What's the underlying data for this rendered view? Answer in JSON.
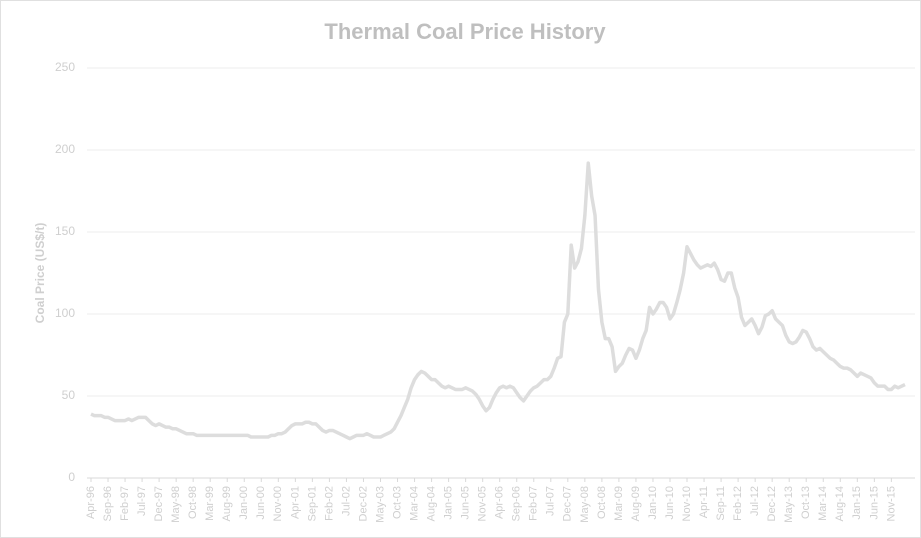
{
  "chart_data": {
    "type": "line",
    "title": "Thermal Coal Price History",
    "y_label": "Coal Price (US$/t)",
    "categories": [
      "Apr-96",
      null,
      null,
      null,
      null,
      "Sep-96",
      null,
      null,
      null,
      null,
      "Feb-97",
      null,
      null,
      null,
      null,
      "Jul-97",
      null,
      null,
      null,
      null,
      "Dec-97",
      null,
      null,
      null,
      null,
      "May-98",
      null,
      null,
      null,
      null,
      "Oct-98",
      null,
      null,
      null,
      null,
      "Mar-99",
      null,
      null,
      null,
      null,
      "Aug-99",
      null,
      null,
      null,
      null,
      "Jan-00",
      null,
      null,
      null,
      null,
      "Jun-00",
      null,
      null,
      null,
      null,
      "Nov-00",
      null,
      null,
      null,
      null,
      "Apr-01",
      null,
      null,
      null,
      null,
      "Sep-01",
      null,
      null,
      null,
      null,
      "Feb-02",
      null,
      null,
      null,
      null,
      "Jul-02",
      null,
      null,
      null,
      null,
      "Dec-02",
      null,
      null,
      null,
      null,
      "May-03",
      null,
      null,
      null,
      null,
      "Oct-03",
      null,
      null,
      null,
      null,
      "Mar-04",
      null,
      null,
      null,
      null,
      "Aug-04",
      null,
      null,
      null,
      null,
      "Jan-05",
      null,
      null,
      null,
      null,
      "Jun-05",
      null,
      null,
      null,
      null,
      "Nov-05",
      null,
      null,
      null,
      null,
      "Apr-06",
      null,
      null,
      null,
      null,
      "Sep-06",
      null,
      null,
      null,
      null,
      "Feb-07",
      null,
      null,
      null,
      null,
      "Jul-07",
      null,
      null,
      null,
      null,
      "Dec-07",
      null,
      null,
      null,
      null,
      "May-08",
      null,
      null,
      null,
      null,
      "Oct-08",
      null,
      null,
      null,
      null,
      "Mar-09",
      null,
      null,
      null,
      null,
      "Aug-09",
      null,
      null,
      null,
      null,
      "Jan-10",
      null,
      null,
      null,
      null,
      "Jun-10",
      null,
      null,
      null,
      null,
      "Nov-10",
      null,
      null,
      null,
      null,
      "Apr-11",
      null,
      null,
      null,
      null,
      "Sep-11",
      null,
      null,
      null,
      null,
      "Feb-12",
      null,
      null,
      null,
      null,
      "Jul-12",
      null,
      null,
      null,
      null,
      "Dec-12",
      null,
      null,
      null,
      null,
      "May-13",
      null,
      null,
      null,
      null,
      "Oct-13",
      null,
      null,
      null,
      null,
      "Mar-14",
      null,
      null,
      null,
      null,
      "Aug-14",
      null,
      null,
      null,
      null,
      "Jan-15",
      null,
      null,
      null,
      null,
      "Jun-15",
      null,
      null,
      null,
      null,
      "Nov-15",
      null,
      null,
      null,
      null
    ],
    "series": [
      {
        "name": "Coal Price",
        "color": "#dddddd",
        "values": [
          39,
          38,
          38,
          38,
          37,
          37,
          36,
          35,
          35,
          35,
          35,
          36,
          35,
          36,
          37,
          37,
          37,
          35,
          33,
          32,
          33,
          32,
          31,
          31,
          30,
          30,
          29,
          28,
          27,
          27,
          27,
          26,
          26,
          26,
          26,
          26,
          26,
          26,
          26,
          26,
          26,
          26,
          26,
          26,
          26,
          26,
          26,
          25,
          25,
          25,
          25,
          25,
          25,
          26,
          26,
          27,
          27,
          28,
          30,
          32,
          33,
          33,
          33,
          34,
          34,
          33,
          33,
          31,
          29,
          28,
          29,
          29,
          28,
          27,
          26,
          25,
          24,
          25,
          26,
          26,
          26,
          27,
          26,
          25,
          25,
          25,
          26,
          27,
          28,
          30,
          34,
          38,
          43,
          48,
          55,
          60,
          63,
          65,
          64,
          62,
          60,
          60,
          58,
          56,
          55,
          56,
          55,
          54,
          54,
          54,
          55,
          54,
          53,
          51,
          48,
          44,
          41,
          43,
          48,
          52,
          55,
          56,
          55,
          56,
          55,
          52,
          49,
          47,
          50,
          53,
          55,
          56,
          58,
          60,
          60,
          62,
          67,
          73,
          74,
          95,
          100,
          142,
          128,
          132,
          140,
          160,
          192,
          172,
          160,
          115,
          95,
          85,
          85,
          80,
          65,
          68,
          70,
          75,
          79,
          78,
          73,
          78,
          85,
          90,
          104,
          100,
          103,
          107,
          107,
          104,
          97,
          100,
          107,
          115,
          125,
          141,
          137,
          133,
          130,
          128,
          129,
          130,
          129,
          131,
          127,
          121,
          120,
          125,
          125,
          116,
          110,
          98,
          93,
          95,
          97,
          93,
          88,
          92,
          99,
          100,
          102,
          97,
          95,
          93,
          87,
          83,
          82,
          83,
          86,
          90,
          89,
          85,
          80,
          78,
          79,
          77,
          75,
          73,
          72,
          70,
          68,
          67,
          67,
          66,
          64,
          62,
          64,
          63,
          62,
          61,
          58,
          56,
          56,
          56,
          54,
          54,
          56,
          55,
          56,
          57
        ]
      }
    ],
    "ylim": [
      0,
      250
    ],
    "yticks": [
      0,
      50,
      100,
      150,
      200,
      250
    ],
    "grid": true
  }
}
